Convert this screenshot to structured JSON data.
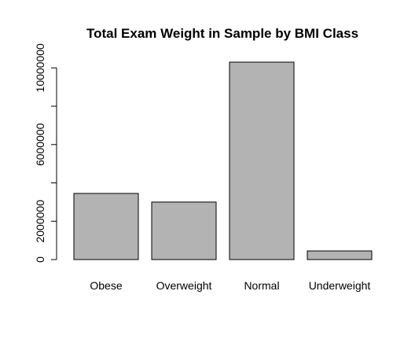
{
  "chart_data": {
    "type": "bar",
    "title": "Total Exam Weight in Sample by BMI Class",
    "xlabel": "",
    "ylabel": "",
    "categories": [
      "Obese",
      "Overweight",
      "Normal",
      "Underweight"
    ],
    "values": [
      3450000,
      3000000,
      10300000,
      450000
    ],
    "ylim": [
      0,
      10300000
    ],
    "yticks": [
      0,
      2000000,
      4000000,
      6000000,
      8000000,
      10000000
    ],
    "ytick_labels": [
      "0",
      "2000000",
      "",
      "6000000",
      "",
      "10000000"
    ],
    "grid": false,
    "legend": "none",
    "bar_color": "#b3b3b3"
  }
}
